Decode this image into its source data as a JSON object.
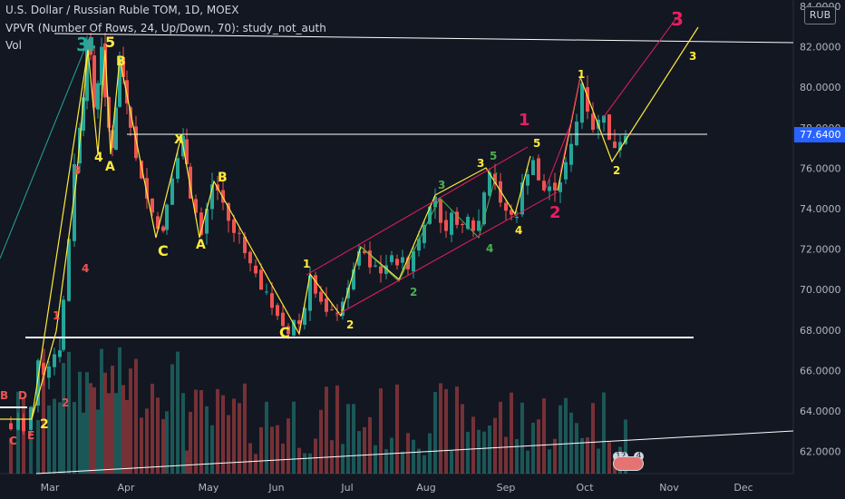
{
  "header": {
    "symbol_line": "U.S. Dollar / Russian Ruble TOM, 1D, MOEX",
    "indicator_line": "VPVR (Number Of Rows, 24, Up/Down, 70): study_not_auth",
    "volume_label": "Vol"
  },
  "currency_badge": "RUB",
  "colors": {
    "background": "#131722",
    "up_candle": "#26a69a",
    "down_candle": "#ef5350",
    "wave_yellow": "#ffeb3b",
    "wave_magenta": "#e91e63",
    "wave_green": "#4caf50",
    "wave_teal": "#26a69a",
    "last_price_badge": "#2962ff"
  },
  "last_price": "77.6400",
  "overlay_badges": [
    "12",
    "4"
  ],
  "chart_data": {
    "type": "candlestick",
    "y_axis": {
      "ticks": [
        "84.0000",
        "82.0000",
        "80.0000",
        "78.0000",
        "76.0000",
        "74.0000",
        "72.0000",
        "70.0000",
        "68.0000",
        "66.0000",
        "64.0000",
        "62.0000"
      ],
      "range": [
        61.0,
        84.4
      ]
    },
    "x_axis": {
      "tick_labels": [
        "Mar",
        "Apr",
        "May",
        "Jun",
        "Jul",
        "Aug",
        "Sep",
        "Oct",
        "Nov",
        "Dec"
      ]
    },
    "close_path": [
      [
        0,
        63.4
      ],
      [
        8,
        63.1
      ],
      [
        16,
        63.6
      ],
      [
        22,
        63.0
      ],
      [
        30,
        64.2
      ],
      [
        38,
        66.5
      ],
      [
        44,
        65.8
      ],
      [
        50,
        66.2
      ],
      [
        56,
        66.8
      ],
      [
        62,
        67.0
      ],
      [
        66,
        69.5
      ],
      [
        72,
        72.5
      ],
      [
        78,
        76.2
      ],
      [
        84,
        78.0
      ],
      [
        88,
        79.5
      ],
      [
        92,
        82.3
      ],
      [
        96,
        81.6
      ],
      [
        100,
        79.0
      ],
      [
        104,
        80.2
      ],
      [
        108,
        82.0
      ],
      [
        112,
        79.5
      ],
      [
        116,
        78.0
      ],
      [
        120,
        77.0
      ],
      [
        124,
        79.0
      ],
      [
        128,
        81.5
      ],
      [
        132,
        80.5
      ],
      [
        136,
        79.2
      ],
      [
        140,
        78.0
      ],
      [
        146,
        76.5
      ],
      [
        152,
        75.5
      ],
      [
        158,
        74.5
      ],
      [
        164,
        73.8
      ],
      [
        170,
        73.0
      ],
      [
        176,
        72.9
      ],
      [
        180,
        74.2
      ],
      [
        186,
        75.5
      ],
      [
        192,
        76.5
      ],
      [
        198,
        77.6
      ],
      [
        202,
        76.2
      ],
      [
        206,
        74.5
      ],
      [
        212,
        73.8
      ],
      [
        218,
        72.7
      ],
      [
        224,
        74.0
      ],
      [
        230,
        75.2
      ],
      [
        236,
        74.9
      ],
      [
        242,
        74.3
      ],
      [
        248,
        73.4
      ],
      [
        254,
        72.8
      ],
      [
        260,
        72.8
      ],
      [
        266,
        71.8
      ],
      [
        272,
        71.3
      ],
      [
        278,
        70.8
      ],
      [
        284,
        70.0
      ],
      [
        290,
        69.9
      ],
      [
        296,
        69.1
      ],
      [
        302,
        68.7
      ],
      [
        308,
        68.2
      ],
      [
        314,
        67.8
      ],
      [
        320,
        68.5
      ],
      [
        326,
        68.3
      ],
      [
        332,
        69.1
      ],
      [
        338,
        70.7
      ],
      [
        344,
        69.8
      ],
      [
        350,
        69.4
      ],
      [
        356,
        68.9
      ],
      [
        362,
        69.0
      ],
      [
        368,
        68.8
      ],
      [
        374,
        69.4
      ],
      [
        380,
        70.1
      ],
      [
        386,
        71.0
      ],
      [
        392,
        71.9
      ],
      [
        398,
        71.8
      ],
      [
        404,
        71.1
      ],
      [
        410,
        71.2
      ],
      [
        416,
        70.8
      ],
      [
        422,
        71.2
      ],
      [
        428,
        71.7
      ],
      [
        434,
        71.2
      ],
      [
        440,
        71.6
      ],
      [
        446,
        71.0
      ],
      [
        452,
        71.9
      ],
      [
        458,
        72.5
      ],
      [
        464,
        73.2
      ],
      [
        470,
        74.1
      ],
      [
        476,
        74.6
      ],
      [
        482,
        73.3
      ],
      [
        488,
        72.9
      ],
      [
        494,
        73.8
      ],
      [
        500,
        73.2
      ],
      [
        506,
        73.2
      ],
      [
        512,
        73.6
      ],
      [
        518,
        72.9
      ],
      [
        524,
        73.4
      ],
      [
        530,
        74.8
      ],
      [
        536,
        75.8
      ],
      [
        542,
        75.2
      ],
      [
        548,
        74.3
      ],
      [
        554,
        73.9
      ],
      [
        560,
        73.7
      ],
      [
        566,
        73.6
      ],
      [
        572,
        75.3
      ],
      [
        578,
        75.7
      ],
      [
        584,
        76.4
      ],
      [
        590,
        75.4
      ],
      [
        596,
        74.9
      ],
      [
        602,
        75.1
      ],
      [
        608,
        74.9
      ],
      [
        614,
        75.3
      ],
      [
        620,
        76.3
      ],
      [
        626,
        77.2
      ],
      [
        632,
        78.3
      ],
      [
        638,
        80.2
      ],
      [
        644,
        78.8
      ],
      [
        650,
        77.9
      ],
      [
        656,
        78.4
      ],
      [
        662,
        78.6
      ],
      [
        668,
        77.4
      ],
      [
        674,
        77.0
      ],
      [
        680,
        77.3
      ],
      [
        686,
        77.6
      ]
    ],
    "volume_trend": "irregular daily volume bars",
    "wave_labels": [
      {
        "text": "3",
        "color": "teal"
      },
      {
        "text": "4",
        "color": "teal"
      },
      {
        "text": "5",
        "color": "yellow"
      },
      {
        "text": "4",
        "color": "yellow"
      },
      {
        "text": "A",
        "color": "yellow"
      },
      {
        "text": "B",
        "color": "yellow"
      },
      {
        "text": "C",
        "color": "yellow"
      },
      {
        "text": "X",
        "color": "yellow"
      },
      {
        "text": "A",
        "color": "yellow"
      },
      {
        "text": "B",
        "color": "yellow"
      },
      {
        "text": "C",
        "color": "yellow"
      },
      {
        "text": "1",
        "color": "yellow"
      },
      {
        "text": "2",
        "color": "yellow"
      },
      {
        "text": "3",
        "color": "yellow"
      },
      {
        "text": "4",
        "color": "yellow"
      },
      {
        "text": "5",
        "color": "yellow"
      },
      {
        "text": "1",
        "color": "yellow"
      },
      {
        "text": "2",
        "color": "yellow"
      },
      {
        "text": "3",
        "color": "yellow"
      },
      {
        "text": "1",
        "color": "magenta"
      },
      {
        "text": "2",
        "color": "magenta"
      },
      {
        "text": "3",
        "color": "magenta"
      },
      {
        "text": "1",
        "color": "green"
      },
      {
        "text": "2",
        "color": "green"
      },
      {
        "text": "3",
        "color": "green"
      },
      {
        "text": "4",
        "color": "green"
      },
      {
        "text": "5",
        "color": "green"
      },
      {
        "text": "1",
        "color": "red"
      },
      {
        "text": "2",
        "color": "red"
      },
      {
        "text": "3",
        "color": "red"
      },
      {
        "text": "4",
        "color": "red"
      },
      {
        "text": "2",
        "color": "yellow"
      },
      {
        "text": "B",
        "color": "red"
      },
      {
        "text": "C",
        "color": "red"
      },
      {
        "text": "D",
        "color": "red"
      },
      {
        "text": "E",
        "color": "red"
      }
    ],
    "grid": false
  }
}
